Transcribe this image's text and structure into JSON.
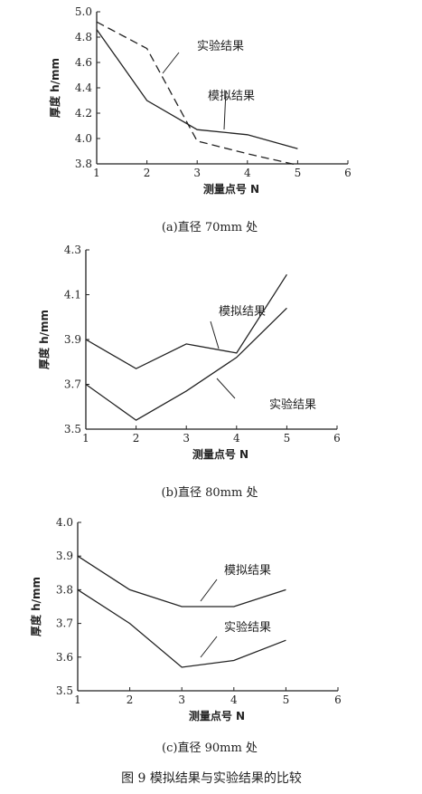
{
  "figure_caption": "图 9   模拟结果与实验结果的比较",
  "chart_data": [
    {
      "type": "line",
      "caption": "(a)直径 70mm 处",
      "xlabel": "测量点号 N",
      "ylabel": "厚度 h/mm",
      "xlim": [
        1,
        6
      ],
      "ylim": [
        3.8,
        5.0
      ],
      "xticks": [
        "1",
        "2",
        "3",
        "4",
        "5",
        "6"
      ],
      "yticks": [
        "3.8",
        "4.0",
        "4.2",
        "4.4",
        "4.6",
        "4.8",
        "5.0"
      ],
      "grid": false,
      "series": [
        {
          "name": "模拟结果",
          "style": "solid",
          "x": [
            1,
            2,
            3,
            4,
            5
          ],
          "y": [
            4.86,
            4.3,
            4.07,
            4.03,
            3.92
          ]
        },
        {
          "name": "实验结果",
          "style": "dashed",
          "x": [
            1,
            2,
            3,
            4,
            5
          ],
          "y": [
            4.92,
            4.71,
            3.98,
            3.88,
            3.79
          ]
        }
      ]
    },
    {
      "type": "line",
      "caption": "(b)直径 80mm 处",
      "xlabel": "测量点号 N",
      "ylabel": "厚度 h/mm",
      "xlim": [
        1,
        6
      ],
      "ylim": [
        3.5,
        4.3
      ],
      "xticks": [
        "1",
        "2",
        "3",
        "4",
        "5",
        "6"
      ],
      "yticks": [
        "3.5",
        "3.7",
        "3.9",
        "4.1",
        "4.3"
      ],
      "grid": false,
      "series": [
        {
          "name": "模拟结果",
          "style": "solid",
          "x": [
            1,
            2,
            3,
            4,
            5
          ],
          "y": [
            3.9,
            3.77,
            3.88,
            3.84,
            4.19
          ]
        },
        {
          "name": "实验结果",
          "style": "solid",
          "x": [
            1,
            2,
            3,
            4,
            5
          ],
          "y": [
            3.7,
            3.54,
            3.67,
            3.82,
            4.04
          ]
        }
      ]
    },
    {
      "type": "line",
      "caption": "(c)直径 90mm 处",
      "xlabel": "测量点号 N",
      "ylabel": "厚度 h/mm",
      "xlim": [
        1,
        6
      ],
      "ylim": [
        3.5,
        4.0
      ],
      "xticks": [
        "1",
        "2",
        "3",
        "4",
        "5",
        "6"
      ],
      "yticks": [
        "3.5",
        "3.6",
        "3.7",
        "3.8",
        "3.9",
        "4.0"
      ],
      "grid": false,
      "series": [
        {
          "name": "模拟结果",
          "style": "solid",
          "x": [
            1,
            2,
            3,
            4,
            5
          ],
          "y": [
            3.9,
            3.8,
            3.75,
            3.75,
            3.8
          ]
        },
        {
          "name": "实验结果",
          "style": "solid",
          "x": [
            1,
            2,
            3,
            4,
            5
          ],
          "y": [
            3.8,
            3.7,
            3.57,
            3.59,
            3.65
          ]
        }
      ]
    }
  ]
}
